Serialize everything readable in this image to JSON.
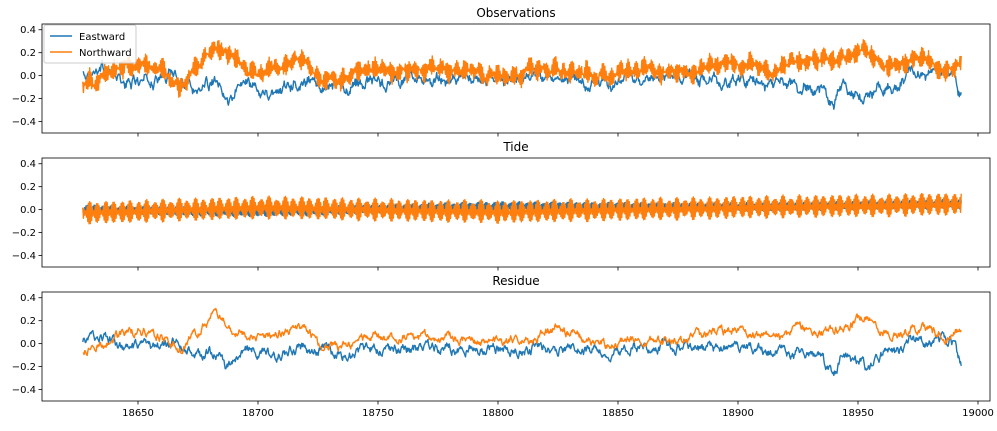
{
  "chart_data": [
    {
      "type": "line",
      "title": "Observations",
      "xlabel": "",
      "ylabel": "",
      "xlim": [
        18610,
        19005
      ],
      "ylim": [
        -0.5,
        0.45
      ],
      "yticks": [
        -0.4,
        -0.2,
        0.0,
        0.2,
        0.4
      ],
      "ytick_labels": [
        "−0.4",
        "−0.2",
        "0.0",
        "0.2",
        "0.4"
      ],
      "xticks": [
        18650,
        18700,
        18750,
        18800,
        18850,
        18900,
        18950,
        19000
      ],
      "xtick_labels": [],
      "grid": false,
      "legend": "upper-left",
      "x_range": [
        18627,
        18993
      ],
      "series": [
        {
          "name": "Eastward",
          "color": "#1f77b4",
          "anchor_x": [
            18627,
            18635,
            18645,
            18655,
            18665,
            18675,
            18682,
            18687,
            18695,
            18705,
            18715,
            18725,
            18735,
            18745,
            18760,
            18775,
            18790,
            18800,
            18815,
            18830,
            18845,
            18860,
            18875,
            18890,
            18905,
            18915,
            18925,
            18935,
            18940,
            18943,
            18948,
            18955,
            18962,
            18967,
            18972,
            18980,
            18990,
            18993
          ],
          "anchor_y": [
            0.02,
            0.08,
            -0.08,
            -0.05,
            0.02,
            -0.12,
            -0.05,
            -0.25,
            -0.05,
            -0.15,
            -0.05,
            -0.05,
            -0.1,
            -0.05,
            -0.05,
            -0.03,
            -0.03,
            -0.05,
            -0.03,
            -0.05,
            -0.08,
            -0.03,
            -0.03,
            -0.05,
            -0.05,
            -0.08,
            -0.08,
            -0.12,
            -0.3,
            -0.1,
            -0.15,
            -0.2,
            -0.05,
            -0.1,
            0.05,
            0.0,
            0.02,
            -0.2
          ],
          "noise": 0.045,
          "tidal_amp": 0.01
        },
        {
          "name": "Northward",
          "color": "#ff7f0e",
          "anchor_x": [
            18627,
            18640,
            18650,
            18660,
            18668,
            18675,
            18682,
            18690,
            18700,
            18710,
            18718,
            18725,
            18735,
            18745,
            18760,
            18780,
            18800,
            18815,
            18830,
            18845,
            18860,
            18875,
            18890,
            18905,
            18915,
            18925,
            18935,
            18945,
            18952,
            18960,
            18970,
            18977,
            18985,
            18993
          ],
          "anchor_y": [
            -0.1,
            0.05,
            0.1,
            0.05,
            -0.1,
            0.1,
            0.25,
            0.15,
            0.0,
            0.1,
            0.15,
            0.0,
            -0.05,
            0.05,
            0.05,
            0.05,
            0.0,
            0.05,
            0.05,
            0.0,
            0.05,
            0.02,
            0.1,
            0.1,
            0.05,
            0.12,
            0.15,
            0.15,
            0.25,
            0.1,
            0.1,
            0.15,
            0.05,
            0.1
          ],
          "noise": 0.03,
          "tidal_amp": 0.08
        }
      ]
    },
    {
      "type": "line",
      "title": "Tide",
      "xlabel": "",
      "ylabel": "",
      "xlim": [
        18610,
        19005
      ],
      "ylim": [
        -0.5,
        0.45
      ],
      "yticks": [
        -0.4,
        -0.2,
        0.0,
        0.2,
        0.4
      ],
      "ytick_labels": [
        "−0.4",
        "−0.2",
        "0.0",
        "0.2",
        "0.4"
      ],
      "xticks": [
        18650,
        18700,
        18750,
        18800,
        18850,
        18900,
        18950,
        19000
      ],
      "xtick_labels": [],
      "grid": false,
      "x_range": [
        18627,
        18993
      ],
      "series": [
        {
          "name": "Eastward",
          "color": "#1f77b4",
          "anchor_x": [
            18627,
            18700,
            18800,
            18900,
            18993
          ],
          "anchor_y": [
            0.0,
            -0.02,
            0.03,
            0.02,
            0.05
          ],
          "noise": 0.003,
          "tidal_amp": 0.04
        },
        {
          "name": "Northward",
          "color": "#ff7f0e",
          "anchor_x": [
            18627,
            18700,
            18800,
            18900,
            18993
          ],
          "anchor_y": [
            -0.03,
            0.02,
            -0.02,
            0.02,
            0.05
          ],
          "noise": 0.003,
          "tidal_amp": 0.1
        }
      ]
    },
    {
      "type": "line",
      "title": "Residue",
      "xlabel": "",
      "ylabel": "",
      "xlim": [
        18610,
        19005
      ],
      "ylim": [
        -0.5,
        0.45
      ],
      "yticks": [
        -0.4,
        -0.2,
        0.0,
        0.2,
        0.4
      ],
      "ytick_labels": [
        "−0.4",
        "−0.2",
        "0.0",
        "0.2",
        "0.4"
      ],
      "xticks": [
        18650,
        18700,
        18750,
        18800,
        18850,
        18900,
        18950,
        19000
      ],
      "xtick_labels": [
        "18650",
        "18700",
        "18750",
        "18800",
        "18850",
        "18900",
        "18950",
        "19000"
      ],
      "grid": false,
      "x_range": [
        18627,
        18993
      ],
      "series": [
        {
          "name": "Eastward",
          "color": "#1f77b4",
          "anchor_x": [
            18627,
            18635,
            18645,
            18655,
            18665,
            18675,
            18682,
            18687,
            18695,
            18705,
            18715,
            18725,
            18735,
            18745,
            18760,
            18775,
            18790,
            18800,
            18815,
            18830,
            18845,
            18860,
            18875,
            18890,
            18905,
            18915,
            18925,
            18935,
            18940,
            18943,
            18948,
            18955,
            18962,
            18967,
            18972,
            18980,
            18990,
            18993
          ],
          "anchor_y": [
            0.02,
            0.07,
            -0.06,
            -0.05,
            0.02,
            -0.12,
            -0.05,
            -0.22,
            -0.05,
            -0.12,
            -0.05,
            -0.05,
            -0.1,
            -0.05,
            -0.05,
            -0.03,
            -0.03,
            -0.05,
            -0.03,
            -0.05,
            -0.08,
            -0.03,
            -0.03,
            -0.05,
            -0.05,
            -0.08,
            -0.08,
            -0.12,
            -0.3,
            -0.1,
            -0.15,
            -0.2,
            -0.05,
            -0.1,
            0.05,
            0.0,
            0.02,
            -0.2
          ],
          "noise": 0.04,
          "tidal_amp": 0.0
        },
        {
          "name": "Northward",
          "color": "#ff7f0e",
          "anchor_x": [
            18627,
            18640,
            18650,
            18660,
            18668,
            18675,
            18682,
            18690,
            18700,
            18710,
            18718,
            18725,
            18735,
            18745,
            18760,
            18780,
            18800,
            18815,
            18825,
            18835,
            18845,
            18860,
            18875,
            18890,
            18905,
            18915,
            18925,
            18935,
            18945,
            18952,
            18960,
            18970,
            18977,
            18985,
            18993
          ],
          "anchor_y": [
            -0.08,
            0.05,
            0.12,
            0.05,
            -0.05,
            0.1,
            0.25,
            0.12,
            0.05,
            0.1,
            0.15,
            0.0,
            -0.03,
            0.05,
            0.05,
            0.05,
            0.0,
            0.05,
            0.15,
            0.05,
            0.0,
            0.05,
            0.02,
            0.1,
            0.1,
            0.05,
            0.12,
            0.1,
            0.15,
            0.25,
            0.1,
            0.1,
            0.15,
            0.05,
            0.1
          ],
          "noise": 0.035,
          "tidal_amp": 0.0
        }
      ]
    }
  ]
}
